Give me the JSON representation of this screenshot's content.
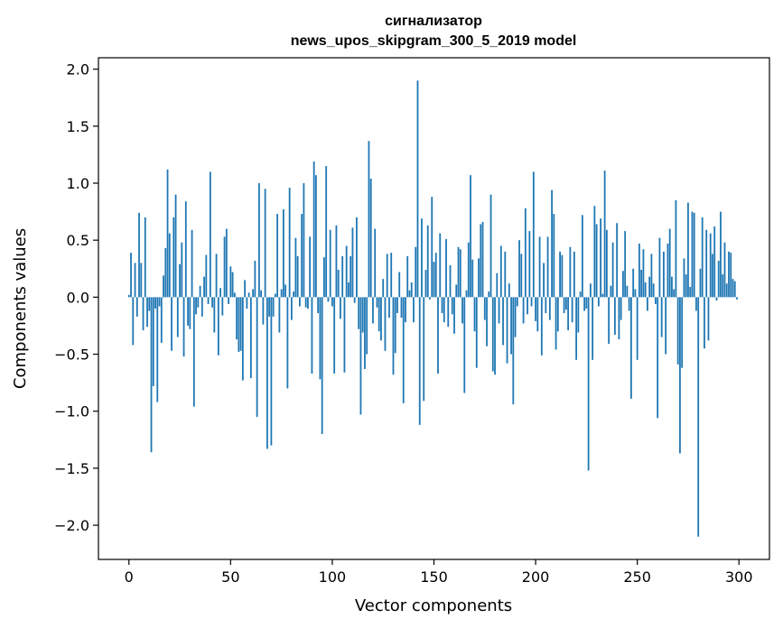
{
  "chart_data": {
    "type": "bar",
    "title_line1": "сигнализатор",
    "title_line2": "news_upos_skipgram_300_5_2019 model",
    "xlabel": "Vector components",
    "ylabel": "Components values",
    "xlim": [
      -15,
      315
    ],
    "ylim": [
      -2.3,
      2.1
    ],
    "x_ticks": [
      0,
      50,
      100,
      150,
      200,
      250,
      300
    ],
    "x_tick_labels": [
      "0",
      "50",
      "100",
      "150",
      "200",
      "250",
      "300"
    ],
    "y_ticks": [
      -2.0,
      -1.5,
      -1.0,
      -0.5,
      0.0,
      0.5,
      1.0,
      1.5,
      2.0
    ],
    "y_tick_labels": [
      "−2.0",
      "−1.5",
      "−1.0",
      "−0.5",
      "0.0",
      "0.5",
      "1.0",
      "1.5",
      "2.0"
    ],
    "bar_color": "#1f77b4",
    "grid": false,
    "values": [
      0.02,
      0.39,
      -0.42,
      0.3,
      -0.17,
      0.74,
      0.3,
      -0.29,
      0.7,
      -0.26,
      -0.12,
      -1.36,
      -0.78,
      -0.1,
      -0.92,
      -0.08,
      -0.4,
      0.19,
      0.43,
      1.12,
      0.56,
      -0.47,
      0.7,
      0.9,
      -0.35,
      0.29,
      0.48,
      -0.52,
      0.84,
      -0.25,
      -0.28,
      0.59,
      -0.96,
      -0.15,
      -0.09,
      0.1,
      -0.17,
      0.18,
      0.37,
      -0.06,
      1.1,
      -0.09,
      -0.31,
      0.38,
      -0.51,
      0.08,
      -0.16,
      0.53,
      0.6,
      -0.06,
      0.27,
      0.22,
      0.04,
      -0.37,
      -0.48,
      -0.47,
      -0.73,
      0.15,
      -0.1,
      0.04,
      -0.71,
      0.07,
      0.32,
      -1.05,
      1.0,
      0.06,
      -0.24,
      0.95,
      -1.33,
      -0.17,
      -1.3,
      -0.17,
      0.03,
      0.73,
      -0.31,
      0.07,
      0.77,
      0.11,
      -0.8,
      0.96,
      -0.2,
      0.05,
      0.52,
      0.36,
      -0.08,
      0.73,
      1.0,
      -0.09,
      -0.1,
      0.53,
      -0.67,
      1.19,
      1.07,
      -0.14,
      -0.72,
      -1.2,
      0.35,
      1.15,
      -0.04,
      0.59,
      -0.08,
      -0.67,
      0.63,
      0.24,
      -0.19,
      0.36,
      -0.66,
      0.45,
      0.13,
      0.36,
      0.61,
      -0.05,
      0.7,
      -0.28,
      -1.03,
      -0.31,
      -0.63,
      -0.5,
      1.37,
      1.04,
      -0.23,
      0.6,
      -0.09,
      -0.3,
      -0.38,
      0.16,
      -0.47,
      0.38,
      -0.18,
      0.39,
      -0.68,
      -0.49,
      -0.14,
      0.22,
      -0.18,
      -0.93,
      -0.22,
      0.36,
      0.06,
      0.13,
      -0.22,
      0.44,
      1.9,
      -1.12,
      0.69,
      -0.91,
      0.24,
      0.63,
      -0.02,
      0.88,
      0.31,
      0.39,
      -0.67,
      0.56,
      -0.14,
      -0.22,
      0.51,
      -0.26,
      0.28,
      -0.15,
      -0.32,
      0.11,
      0.44,
      0.42,
      -0.23,
      -0.84,
      0.06,
      0.48,
      1.07,
      0.33,
      -0.3,
      -0.62,
      0.34,
      0.64,
      0.66,
      -0.2,
      -0.43,
      0.05,
      0.9,
      -0.65,
      -0.68,
      0.21,
      -0.23,
      0.45,
      -0.42,
      0.4,
      -0.58,
      0.12,
      -0.5,
      -0.94,
      -0.35,
      -0.08,
      0.5,
      0.38,
      -0.23,
      0.78,
      -0.15,
      0.58,
      -0.08,
      1.1,
      -0.21,
      -0.3,
      0.53,
      -0.51,
      0.3,
      -0.14,
      0.53,
      -0.2,
      0.94,
      0.73,
      -0.46,
      -0.3,
      0.4,
      0.37,
      -0.14,
      -0.11,
      -0.29,
      0.44,
      -0.22,
      0.4,
      -0.55,
      -0.31,
      0.05,
      0.72,
      -0.12,
      -0.1,
      -1.52,
      0.12,
      -0.55,
      0.8,
      0.64,
      -0.08,
      0.69,
      0.03,
      1.11,
      0.59,
      -0.41,
      0.1,
      0.48,
      -0.33,
      0.65,
      -0.37,
      -0.2,
      0.23,
      0.58,
      0.1,
      -0.12,
      -0.89,
      0.25,
      0.07,
      -0.55,
      0.47,
      0.24,
      0.42,
      0.13,
      -0.12,
      0.18,
      0.38,
      0.12,
      -0.06,
      -1.06,
      0.52,
      -0.35,
      0.4,
      -0.5,
      0.47,
      0.6,
      0.18,
      0.07,
      0.85,
      -0.59,
      -1.37,
      -0.62,
      0.34,
      0.2,
      0.83,
      0.09,
      0.75,
      0.74,
      -0.12,
      -2.1,
      0.25,
      0.7,
      -0.45,
      0.59,
      -0.38,
      0.56,
      0.38,
      0.62,
      -0.03,
      0.32,
      0.75,
      0.2,
      0.48,
      0.12,
      0.4,
      0.39,
      0.16,
      0.14,
      -0.02
    ]
  }
}
